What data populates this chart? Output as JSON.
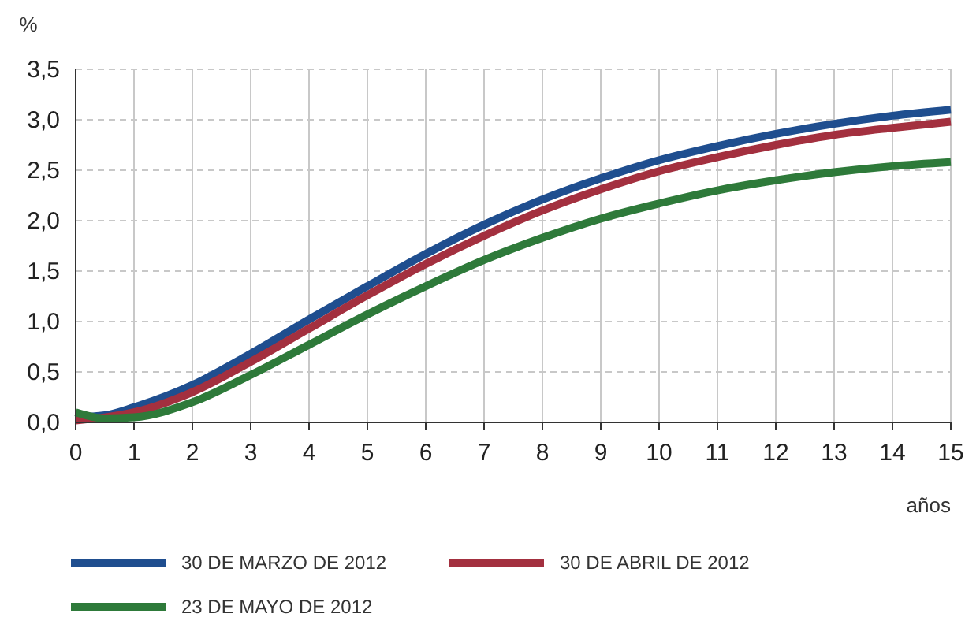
{
  "chart_data": {
    "type": "line",
    "ylabel": "%",
    "xlabel": "años",
    "x": [
      0,
      0.5,
      1,
      2,
      3,
      4,
      5,
      6,
      7,
      8,
      9,
      10,
      11,
      12,
      13,
      14,
      15
    ],
    "series": [
      {
        "name": "30 DE MARZO DE 2012",
        "color": "#1f4e8f",
        "values": [
          0.05,
          0.07,
          0.15,
          0.37,
          0.68,
          1.02,
          1.35,
          1.67,
          1.96,
          2.21,
          2.42,
          2.6,
          2.74,
          2.86,
          2.96,
          3.04,
          3.1
        ]
      },
      {
        "name": "30 DE ABRIL DE 2012",
        "color": "#a3303f",
        "values": [
          0.02,
          0.05,
          0.1,
          0.3,
          0.6,
          0.93,
          1.26,
          1.57,
          1.85,
          2.1,
          2.31,
          2.49,
          2.63,
          2.75,
          2.85,
          2.92,
          2.98
        ]
      },
      {
        "name": "23 DE MAYO DE 2012",
        "color": "#2e7a3a",
        "values": [
          0.1,
          0.04,
          0.05,
          0.2,
          0.47,
          0.77,
          1.07,
          1.35,
          1.61,
          1.83,
          2.02,
          2.17,
          2.3,
          2.4,
          2.48,
          2.54,
          2.58
        ]
      }
    ],
    "xlim": [
      0,
      15
    ],
    "xticks": [
      0,
      1,
      2,
      3,
      4,
      5,
      6,
      7,
      8,
      9,
      10,
      11,
      12,
      13,
      14,
      15
    ],
    "ylim": [
      0,
      3.5
    ],
    "yticks": [
      {
        "value": 0,
        "label": "0,0"
      },
      {
        "value": 0.5,
        "label": "0,5"
      },
      {
        "value": 1,
        "label": "1,0"
      },
      {
        "value": 1.5,
        "label": "1,5"
      },
      {
        "value": 2,
        "label": "2,0"
      },
      {
        "value": 2.5,
        "label": "2,5"
      },
      {
        "value": 3,
        "label": "3,0"
      },
      {
        "value": 3.5,
        "label": "3,5"
      }
    ],
    "grid": true,
    "legend": "bottom",
    "marker": "none",
    "line_style": "solid"
  }
}
